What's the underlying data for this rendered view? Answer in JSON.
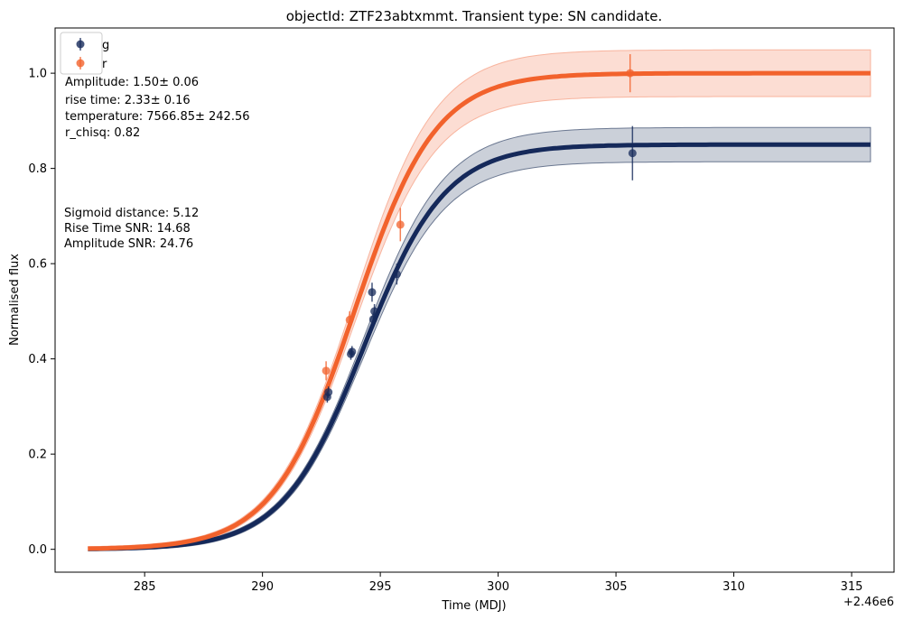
{
  "chart_data": {
    "type": "scatter",
    "title": "objectId: ZTF23abtxmmt. Transient type: SN candidate.",
    "xlabel": "Time (MDJ)",
    "ylabel": "Normalised flux",
    "x_offset_label": "+2.46e6",
    "xlim": [
      281.2,
      316.8
    ],
    "ylim": [
      -0.048,
      1.095
    ],
    "xticks": [
      285,
      290,
      295,
      300,
      305,
      310,
      315
    ],
    "xtick_labels": [
      "285",
      "290",
      "295",
      "300",
      "305",
      "310",
      "315"
    ],
    "yticks": [
      0.0,
      0.2,
      0.4,
      0.6,
      0.8,
      1.0
    ],
    "ytick_labels": [
      "0.0",
      "0.2",
      "0.4",
      "0.6",
      "0.8",
      "1.0"
    ],
    "grid": false,
    "legend_position": "top-left",
    "series": [
      {
        "name": "g",
        "color": "#15295a",
        "band_color": "#6b7891",
        "points": [
          {
            "x": 292.75,
            "y": 0.32,
            "err": 0.012
          },
          {
            "x": 292.8,
            "y": 0.33,
            "err": 0.012
          },
          {
            "x": 293.75,
            "y": 0.41,
            "err": 0.012
          },
          {
            "x": 293.8,
            "y": 0.415,
            "err": 0.012
          },
          {
            "x": 294.65,
            "y": 0.54,
            "err": 0.02
          },
          {
            "x": 294.7,
            "y": 0.483,
            "err": 0.012
          },
          {
            "x": 294.75,
            "y": 0.5,
            "err": 0.015
          },
          {
            "x": 295.7,
            "y": 0.578,
            "err": 0.022
          },
          {
            "x": 305.7,
            "y": 0.832,
            "err": 0.057
          }
        ],
        "fit": {
          "amplitude": 0.85,
          "t0": 294.3,
          "rise_time": 2.33,
          "band": 0.032,
          "x_start": 282.6,
          "x_end": 315.8
        }
      },
      {
        "name": "r",
        "color": "#f2622c",
        "band_color": "#f8b49e",
        "points": [
          {
            "x": 292.7,
            "y": 0.375,
            "err": 0.02
          },
          {
            "x": 293.7,
            "y": 0.482,
            "err": 0.018
          },
          {
            "x": 295.85,
            "y": 0.682,
            "err": 0.035
          },
          {
            "x": 305.6,
            "y": 1.0,
            "err": 0.04
          }
        ],
        "fit": {
          "amplitude": 1.0,
          "t0": 293.9,
          "rise_time": 2.33,
          "band": 0.045,
          "x_start": 282.6,
          "x_end": 315.8
        }
      }
    ],
    "annotations": {
      "fit_params": [
        "Amplitude: 1.50± 0.06",
        "rise time: 2.33± 0.16",
        "temperature: 7566.85± 242.56",
        "r_chisq: 0.82"
      ],
      "metrics": [
        "Sigmoid distance: 5.12",
        "Rise Time SNR: 14.68",
        "Amplitude SNR: 24.76"
      ]
    }
  }
}
